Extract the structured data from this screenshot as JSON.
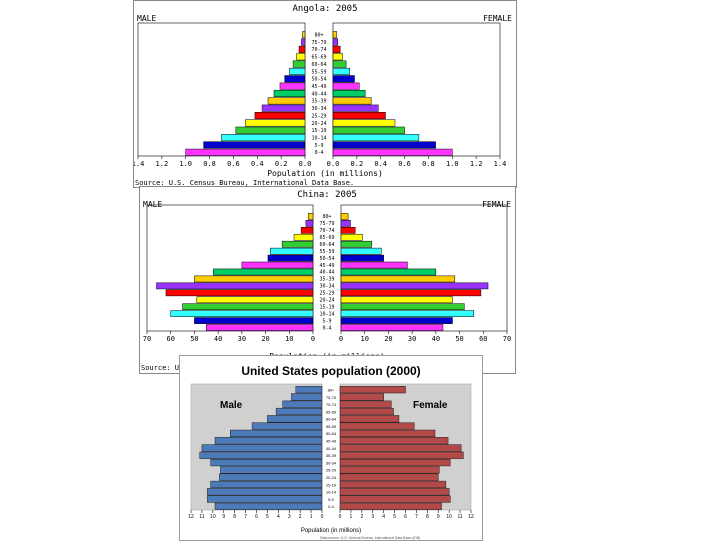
{
  "colors": {
    "cycle": [
      "#ff33ff",
      "#0000cc",
      "#33ffff",
      "#33cc33",
      "#ffff00",
      "#ff0000",
      "#9933ff",
      "#ffcc00",
      "#00cc66"
    ],
    "us_male": "#4d7ab8",
    "us_female": "#b24a4a",
    "us_bg": "#d0d0d0"
  },
  "chart_data": [
    {
      "type": "bar",
      "title": "Angola: 2005",
      "left_label": "MALE",
      "right_label": "FEMALE",
      "xlabel": "Population (in millions)",
      "source": "Source: U.S. Census Bureau, International Data Base.",
      "age_groups": [
        "0-4",
        "5-9",
        "10-14",
        "15-19",
        "20-24",
        "25-29",
        "30-34",
        "35-39",
        "40-44",
        "45-49",
        "50-54",
        "55-59",
        "60-64",
        "65-69",
        "70-74",
        "75-79",
        "80+"
      ],
      "xlim": [
        -1.4,
        1.4
      ],
      "xticks": [
        "1.4",
        "1.2",
        "1.0",
        "0.8",
        "0.6",
        "0.4",
        "0.2",
        "0.0",
        "0.0",
        "0.2",
        "0.4",
        "0.6",
        "0.8",
        "1.0",
        "1.2",
        "1.4"
      ],
      "series": [
        {
          "name": "Male",
          "values": [
            1.0,
            0.85,
            0.7,
            0.58,
            0.5,
            0.42,
            0.36,
            0.31,
            0.26,
            0.21,
            0.17,
            0.13,
            0.1,
            0.07,
            0.05,
            0.03,
            0.02
          ]
        },
        {
          "name": "Female",
          "values": [
            1.0,
            0.86,
            0.72,
            0.6,
            0.52,
            0.44,
            0.38,
            0.32,
            0.27,
            0.22,
            0.18,
            0.14,
            0.11,
            0.08,
            0.06,
            0.04,
            0.03
          ]
        }
      ]
    },
    {
      "type": "bar",
      "title": "China: 2005",
      "left_label": "MALE",
      "right_label": "FEMALE",
      "xlabel": "Population (in millions)",
      "source": "Source: U.S. Census Bureau, International Data Base.",
      "age_groups": [
        "0-4",
        "5-9",
        "10-14",
        "15-19",
        "20-24",
        "25-29",
        "30-34",
        "35-39",
        "40-44",
        "45-49",
        "50-54",
        "55-59",
        "60-64",
        "65-69",
        "70-74",
        "75-79",
        "80+"
      ],
      "xlim": [
        -70,
        70
      ],
      "xticks": [
        "70",
        "60",
        "50",
        "40",
        "30",
        "20",
        "10",
        "0",
        "0",
        "10",
        "20",
        "30",
        "40",
        "50",
        "60",
        "70"
      ],
      "series": [
        {
          "name": "Male",
          "values": [
            45,
            50,
            60,
            55,
            49,
            62,
            66,
            50,
            42,
            30,
            19,
            18,
            13,
            8,
            5,
            3,
            2
          ]
        },
        {
          "name": "Female",
          "values": [
            43,
            47,
            56,
            52,
            47,
            59,
            62,
            48,
            40,
            28,
            18,
            17,
            13,
            9,
            6,
            4,
            3
          ]
        }
      ]
    },
    {
      "type": "bar",
      "title": "United States population (2000)",
      "left_label": "Male",
      "right_label": "Female",
      "xlabel": "Population (in millions)",
      "source": "Data source: U.S. Census Bureau, International Data Base (IDB)",
      "age_groups": [
        "0-4",
        "5-9",
        "10-14",
        "15-19",
        "20-24",
        "25-29",
        "30-34",
        "35-39",
        "40-44",
        "45-49",
        "50-54",
        "55-59",
        "60-64",
        "65-69",
        "70-74",
        "75-79",
        "80+"
      ],
      "xlim": [
        -12,
        12
      ],
      "xticks": [
        "12",
        "11",
        "10",
        "9",
        "8",
        "7",
        "6",
        "5",
        "4",
        "3",
        "2",
        "1",
        "0",
        "0",
        "1",
        "2",
        "3",
        "4",
        "5",
        "6",
        "7",
        "8",
        "9",
        "10",
        "11",
        "12"
      ],
      "series": [
        {
          "name": "Male",
          "values": [
            9.8,
            10.5,
            10.5,
            10.2,
            9.4,
            9.3,
            10.2,
            11.2,
            11.0,
            9.8,
            8.4,
            6.4,
            5.0,
            4.2,
            3.6,
            2.8,
            2.4
          ]
        },
        {
          "name": "Female",
          "values": [
            9.3,
            10.1,
            10.0,
            9.7,
            9.0,
            9.1,
            10.1,
            11.3,
            11.1,
            9.9,
            8.7,
            6.8,
            5.4,
            4.9,
            4.7,
            4.0,
            6.0
          ]
        }
      ]
    }
  ]
}
